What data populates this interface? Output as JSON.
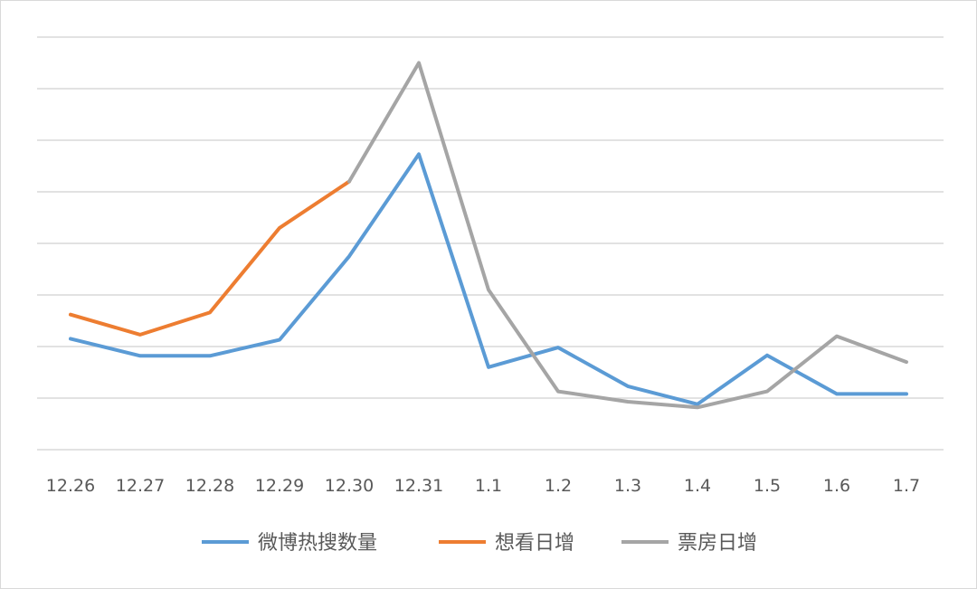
{
  "chart_data": {
    "type": "line",
    "title": "",
    "xlabel": "",
    "ylabel": "",
    "categories": [
      "12.26",
      "12.27",
      "12.28",
      "12.29",
      "12.30",
      "12.31",
      "1.1",
      "1.2",
      "1.3",
      "1.4",
      "1.5",
      "1.6",
      "1.7"
    ],
    "ylim": [
      0,
      8
    ],
    "y_gridlines": [
      0,
      1,
      2,
      3,
      4,
      5,
      6,
      7,
      8
    ],
    "y_tick_labels_visible": false,
    "grid": true,
    "legend_position": "bottom",
    "series": [
      {
        "name": "微博热搜数量",
        "color": "#5b9bd5",
        "values": [
          2.15,
          1.82,
          1.82,
          2.13,
          3.75,
          5.73,
          1.6,
          1.98,
          1.23,
          0.88,
          1.83,
          1.08,
          1.08
        ]
      },
      {
        "name": "想看日增",
        "color": "#ed7d31",
        "values": [
          2.62,
          2.23,
          2.66,
          4.3,
          5.2,
          null,
          null,
          null,
          null,
          null,
          null,
          null,
          null
        ]
      },
      {
        "name": "票房日增",
        "color": "#a5a5a5",
        "values": [
          null,
          null,
          null,
          null,
          5.2,
          7.5,
          3.1,
          1.13,
          0.93,
          0.82,
          1.13,
          2.2,
          1.7
        ]
      }
    ]
  }
}
